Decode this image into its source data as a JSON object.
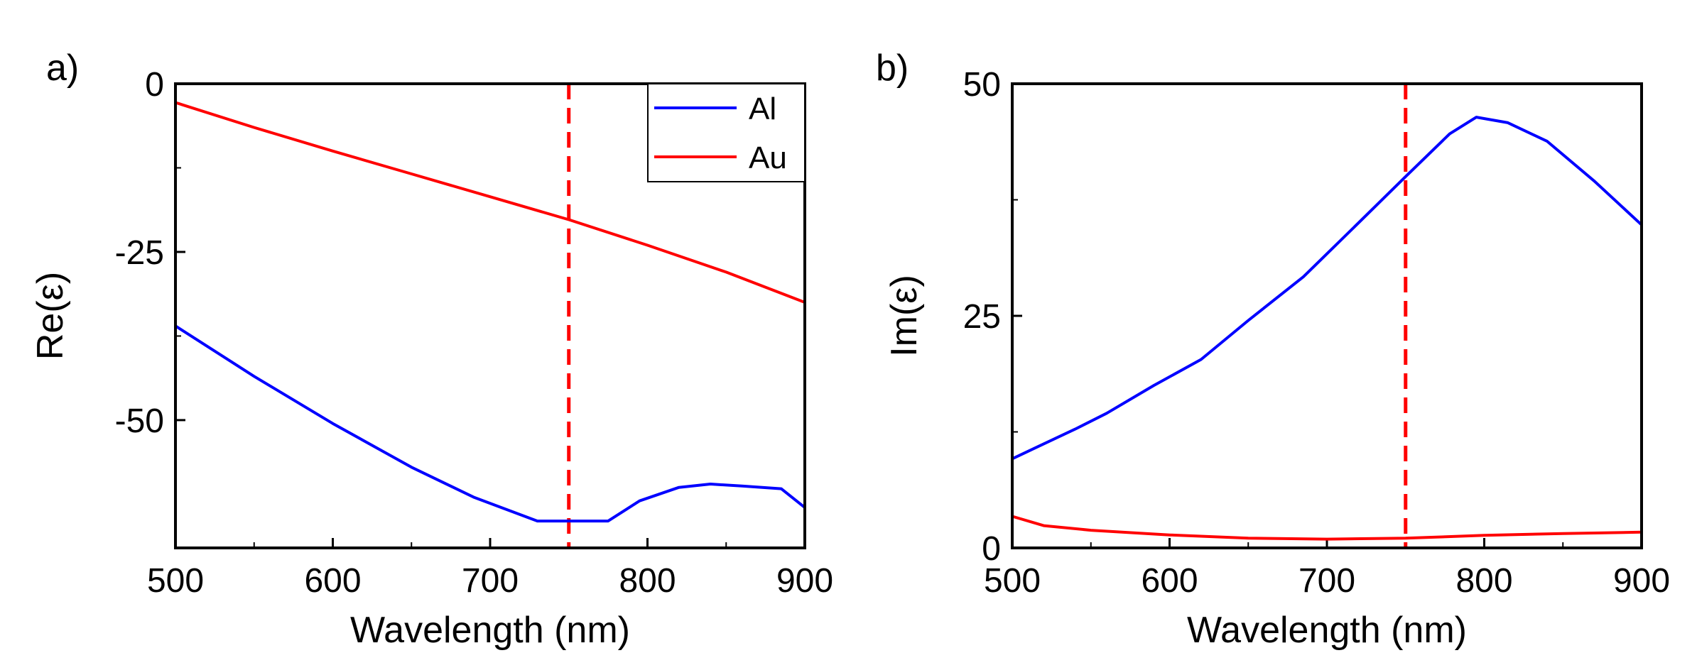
{
  "figure": {
    "colors": {
      "al": "#0000ff",
      "au": "#ff0000",
      "marker": "#ff0000",
      "axis": "#000000"
    }
  },
  "chart_data": [
    {
      "type": "line",
      "panel_label": "a)",
      "xlabel": "Wavelength (nm)",
      "ylabel": "Re(ε)",
      "xlim": [
        500,
        900
      ],
      "ylim": [
        -69,
        0
      ],
      "xticks": [
        500,
        600,
        700,
        800,
        900
      ],
      "yticks": [
        0,
        -25,
        -50
      ],
      "ytick_labels": [
        "0",
        "-25",
        "-50"
      ],
      "vline": {
        "x": 750,
        "style": "dashed",
        "color": "#ff0000"
      },
      "legend": {
        "position": "top-right",
        "entries": [
          "Al",
          "Au"
        ]
      },
      "series": [
        {
          "name": "Al",
          "color": "#0000ff",
          "x": [
            500,
            550,
            600,
            650,
            690,
            730,
            775,
            795,
            820,
            840,
            860,
            885,
            900
          ],
          "y": [
            -36,
            -43.5,
            -50.5,
            -57,
            -61.5,
            -65,
            -65,
            -62,
            -60,
            -59.5,
            -59.8,
            -60.2,
            -63
          ]
        },
        {
          "name": "Au",
          "color": "#ff0000",
          "x": [
            500,
            550,
            600,
            650,
            700,
            750,
            800,
            850,
            900
          ],
          "y": [
            -2.8,
            -6.5,
            -10,
            -13.4,
            -16.8,
            -20.2,
            -24,
            -28,
            -32.5
          ]
        }
      ]
    },
    {
      "type": "line",
      "panel_label": "b)",
      "xlabel": "Wavelength (nm)",
      "ylabel": "Im(ε)",
      "xlim": [
        500,
        900
      ],
      "ylim": [
        0,
        50
      ],
      "xticks": [
        500,
        600,
        700,
        800,
        900
      ],
      "yticks": [
        0,
        25,
        50
      ],
      "ytick_labels": [
        "0",
        "25",
        "50"
      ],
      "vline": {
        "x": 750,
        "style": "dashed",
        "color": "#ff0000"
      },
      "series": [
        {
          "name": "Al",
          "color": "#0000ff",
          "x": [
            500,
            515,
            540,
            560,
            590,
            620,
            650,
            685,
            720,
            750,
            778,
            795,
            815,
            840,
            870,
            900
          ],
          "y": [
            9.6,
            10.8,
            12.8,
            14.5,
            17.5,
            20.3,
            24.5,
            29.2,
            35,
            40,
            44.6,
            46.4,
            45.8,
            43.8,
            39.5,
            34.8
          ]
        },
        {
          "name": "Au",
          "color": "#ff0000",
          "x": [
            500,
            520,
            550,
            600,
            650,
            700,
            750,
            800,
            850,
            900
          ],
          "y": [
            3.4,
            2.4,
            1.9,
            1.4,
            1.05,
            0.95,
            1.05,
            1.35,
            1.55,
            1.7
          ]
        }
      ]
    }
  ]
}
